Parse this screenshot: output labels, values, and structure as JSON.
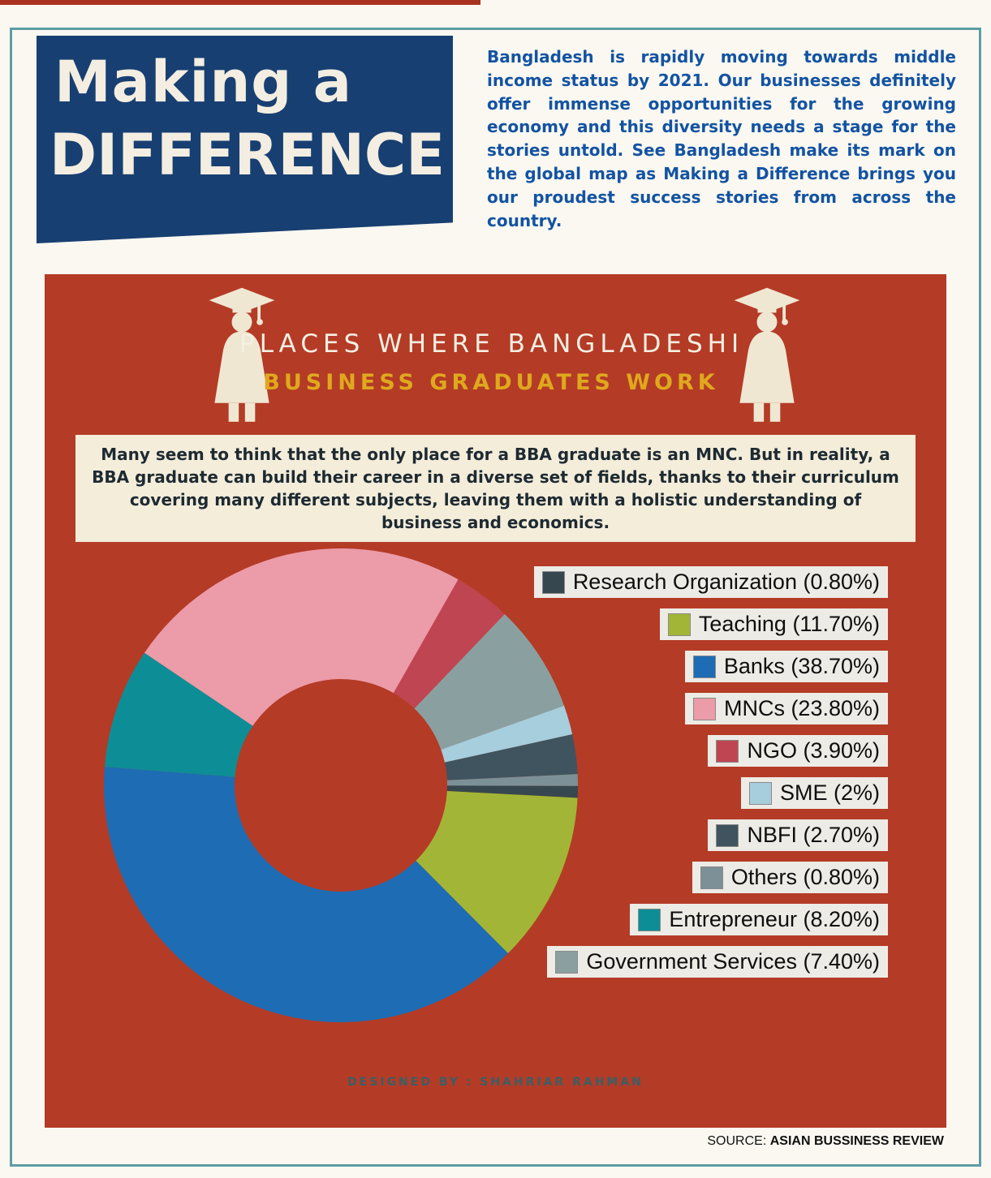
{
  "page": {
    "title_line1": "Making a",
    "title_line2": "DIFFERENCE",
    "intro": "Bangladesh is rapidly moving towards middle income status by 2021. Our businesses definitely offer immense opportunities for the growing economy and this diversity needs a stage for the stories untold. See Bangladesh make its mark on the global map as Making a Difference brings you our proudest success stories from across the country.",
    "source_label": "SOURCE:",
    "source_name": "ASIAN BUSSINESS REVIEW"
  },
  "infographic": {
    "heading_line1": "PLACES WHERE BANGLADESHI",
    "heading_line2": "BUSINESS GRADUATES WORK",
    "description": "Many seem to think that the only place for a BBA graduate is an MNC. But in reality, a BBA graduate can build their career in a diverse set of fields, thanks to their curriculum covering many different subjects, leaving them with a holistic understanding of business and economics.",
    "designed_by": "DESIGNED BY :  SHAHRIAR RAHMAN"
  },
  "chart_data": {
    "type": "pie",
    "variant": "donut",
    "title": "Places where Bangladeshi business graduates work",
    "legend_position": "right",
    "categories": [
      "Research Organization",
      "Teaching",
      "Banks",
      "MNCs",
      "NGO",
      "SME",
      "NBFI",
      "Others",
      "Entrepreneur",
      "Government Services"
    ],
    "values": [
      0.8,
      11.7,
      38.7,
      23.8,
      3.9,
      2,
      2.7,
      0.8,
      8.2,
      7.4
    ],
    "labels": [
      "Research Organization (0.80%)",
      "Teaching (11.70%)",
      "Banks (38.70%)",
      "MNCs (23.80%)",
      "NGO (3.90%)",
      "SME (2%)",
      "NBFI (2.70%)",
      "Others (0.80%)",
      "Entrepreneur (8.20%)",
      "Government Services (7.40%)"
    ],
    "colors": [
      "#37474f",
      "#a3b536",
      "#1d6cb4",
      "#ec9ba8",
      "#c04552",
      "#a6cedd",
      "#3f545e",
      "#7c9097",
      "#0d8e96",
      "#8aa0a0"
    ],
    "draw_order": [
      3,
      4,
      9,
      5,
      6,
      7,
      0,
      1,
      2,
      8
    ],
    "start_angle_deg": 304,
    "inner_radius_ratio": 0.45
  },
  "theme": {
    "panel_red": "#b43b26",
    "header_navy": "#183f72",
    "intro_blue": "#1353a2",
    "heading_white": "#f3efe2",
    "heading_gold": "#dfa81d",
    "banner_cream": "#f3edda",
    "legend_bg": "#edebe5",
    "frame_teal": "#5d9da3",
    "top_bar_red": "#a93120"
  }
}
